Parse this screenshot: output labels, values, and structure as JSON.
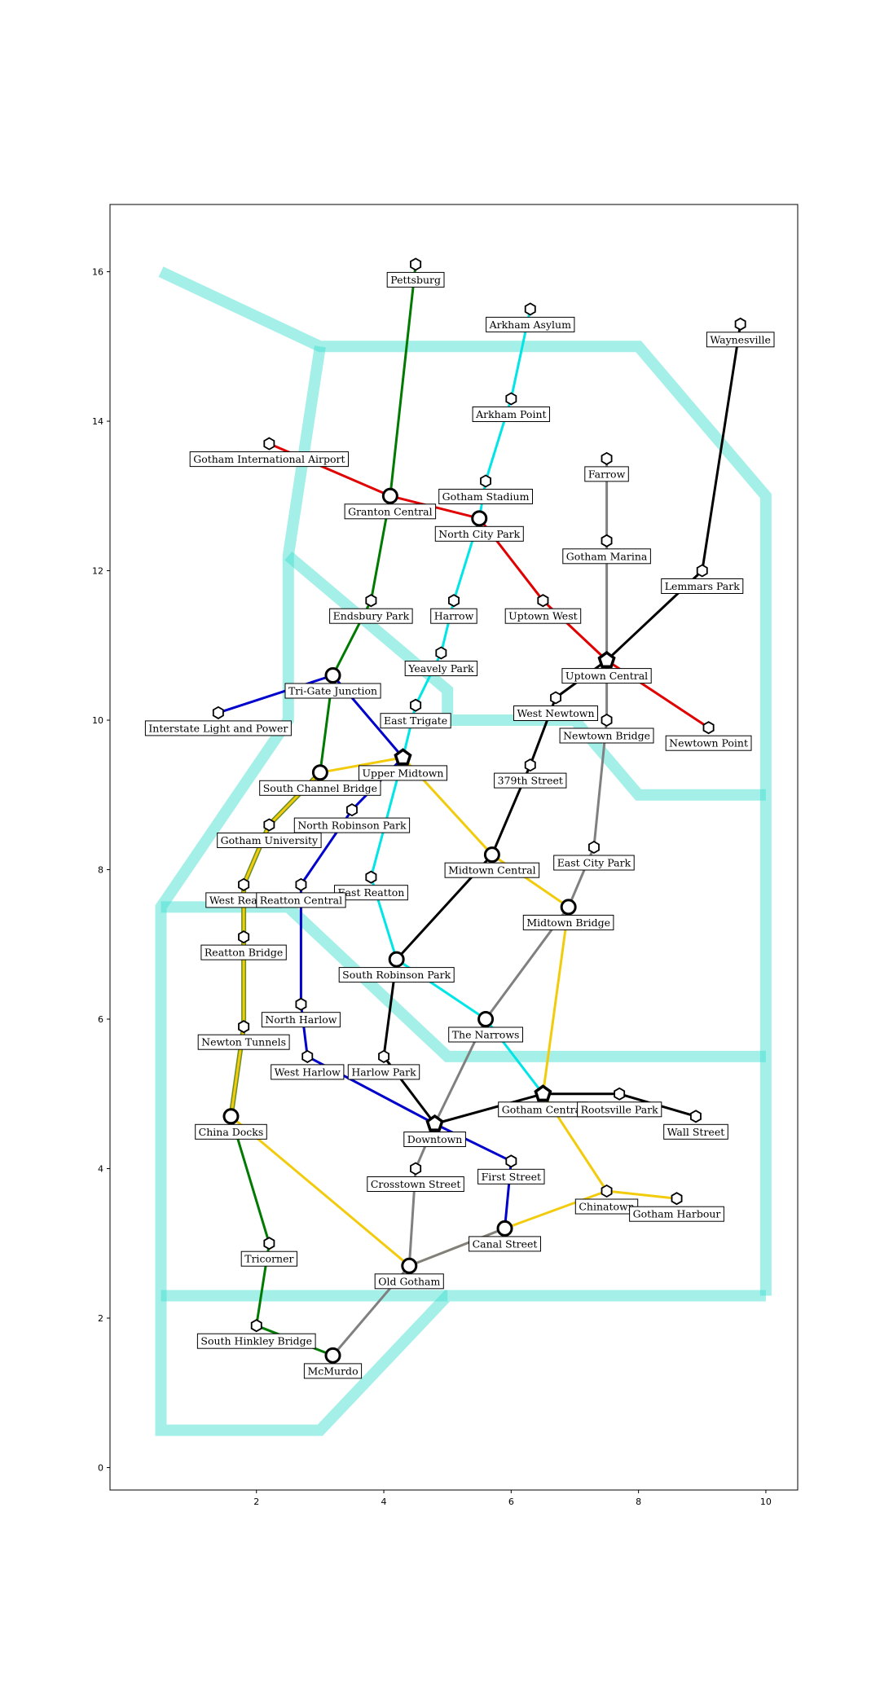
{
  "chart_data": {
    "type": "diagram",
    "xlim": [
      -0.3,
      10.5
    ],
    "ylim": [
      -0.3,
      16.9
    ],
    "x_ticks": [
      2,
      4,
      6,
      8,
      10
    ],
    "y_ticks": [
      0,
      2,
      4,
      6,
      8,
      10,
      12,
      14,
      16
    ],
    "colors": {
      "river": "#40e0d0",
      "red": "#e00000",
      "green": "#007a00",
      "cyan": "#00e5e5",
      "blue": "#0000cc",
      "black": "#000000",
      "gray": "#808080",
      "yellow": "#f2cc0c",
      "olive": "#6b8e23"
    },
    "river": [
      {
        "points": [
          [
            0.5,
            16
          ],
          [
            3,
            15
          ],
          [
            8,
            15
          ],
          [
            10,
            13
          ],
          [
            10,
            2.3
          ]
        ]
      },
      {
        "points": [
          [
            3,
            15
          ],
          [
            2.5,
            12.2
          ],
          [
            2.5,
            10
          ],
          [
            0.5,
            7.5
          ],
          [
            0.5,
            0.5
          ],
          [
            3,
            0.5
          ],
          [
            5,
            2.3
          ],
          [
            10,
            2.3
          ]
        ]
      },
      {
        "points": [
          [
            2.5,
            12.2
          ],
          [
            5,
            10.4
          ],
          [
            5,
            10
          ],
          [
            7,
            10
          ],
          [
            8,
            9
          ],
          [
            10,
            9
          ]
        ]
      },
      {
        "points": [
          [
            0.5,
            7.5
          ],
          [
            2.5,
            7.5
          ],
          [
            5,
            5.5
          ],
          [
            10,
            5.5
          ]
        ]
      },
      {
        "points": [
          [
            0.5,
            2.3
          ],
          [
            5,
            2.3
          ]
        ]
      }
    ],
    "stations": [
      {
        "id": "pettsburg",
        "name": "Pettsburg",
        "x": 4.5,
        "y": 16.1,
        "kind": "station"
      },
      {
        "id": "arkham-asylum",
        "name": "Arkham Asylum",
        "x": 6.3,
        "y": 15.5,
        "kind": "station"
      },
      {
        "id": "waynesville",
        "name": "Waynesville",
        "x": 9.6,
        "y": 15.3,
        "kind": "station"
      },
      {
        "id": "arkham-point",
        "name": "Arkham Point",
        "x": 6.0,
        "y": 14.3,
        "kind": "station"
      },
      {
        "id": "gotham-international-airport",
        "name": "Gotham International Airport",
        "x": 2.2,
        "y": 13.7,
        "kind": "station"
      },
      {
        "id": "farrow",
        "name": "Farrow",
        "x": 7.5,
        "y": 13.5,
        "kind": "station"
      },
      {
        "id": "gotham-stadium",
        "name": "Gotham Stadium",
        "x": 5.6,
        "y": 13.2,
        "kind": "station"
      },
      {
        "id": "granton-central",
        "name": "Granton Central",
        "x": 4.1,
        "y": 13.0,
        "kind": "hub"
      },
      {
        "id": "north-city-park",
        "name": "North City Park",
        "x": 5.5,
        "y": 12.7,
        "kind": "hub"
      },
      {
        "id": "gotham-marina",
        "name": "Gotham Marina",
        "x": 7.5,
        "y": 12.4,
        "kind": "station"
      },
      {
        "id": "lemmars-park",
        "name": "Lemmars Park",
        "x": 9.0,
        "y": 12.0,
        "kind": "station"
      },
      {
        "id": "endsbury-park",
        "name": "Endsbury Park",
        "x": 3.8,
        "y": 11.6,
        "kind": "station"
      },
      {
        "id": "harrow",
        "name": "Harrow",
        "x": 5.1,
        "y": 11.6,
        "kind": "station"
      },
      {
        "id": "uptown-west",
        "name": "Uptown West",
        "x": 6.5,
        "y": 11.6,
        "kind": "station"
      },
      {
        "id": "yeavely-park",
        "name": "Yeavely Park",
        "x": 4.9,
        "y": 10.9,
        "kind": "station"
      },
      {
        "id": "uptown-central",
        "name": "Uptown Central",
        "x": 7.5,
        "y": 10.8,
        "kind": "major"
      },
      {
        "id": "tri-gate-junction",
        "name": "Tri-Gate Junction",
        "x": 3.2,
        "y": 10.6,
        "kind": "hub"
      },
      {
        "id": "east-trigate",
        "name": "East Trigate",
        "x": 4.5,
        "y": 10.2,
        "kind": "station"
      },
      {
        "id": "west-newtown",
        "name": "West Newtown",
        "x": 6.7,
        "y": 10.3,
        "kind": "station"
      },
      {
        "id": "interstate-light-and-power",
        "name": "Interstate Light and Power",
        "x": 1.4,
        "y": 10.1,
        "kind": "station"
      },
      {
        "id": "newtown-bridge",
        "name": "Newtown Bridge",
        "x": 7.5,
        "y": 10.0,
        "kind": "station"
      },
      {
        "id": "newtown-point",
        "name": "Newtown Point",
        "x": 9.1,
        "y": 9.9,
        "kind": "station"
      },
      {
        "id": "upper-midtown",
        "name": "Upper Midtown",
        "x": 4.3,
        "y": 9.5,
        "kind": "major"
      },
      {
        "id": "379th-street",
        "name": "379th Street",
        "x": 6.3,
        "y": 9.4,
        "kind": "station"
      },
      {
        "id": "south-channel-bridge",
        "name": "South Channel Bridge",
        "x": 3.0,
        "y": 9.3,
        "kind": "hub"
      },
      {
        "id": "north-robinson-park",
        "name": "North Robinson Park",
        "x": 3.5,
        "y": 8.8,
        "kind": "station"
      },
      {
        "id": "gotham-university",
        "name": "Gotham University",
        "x": 2.2,
        "y": 8.6,
        "kind": "station"
      },
      {
        "id": "east-city-park",
        "name": "East City Park",
        "x": 7.3,
        "y": 8.3,
        "kind": "station"
      },
      {
        "id": "midtown-central",
        "name": "Midtown Central",
        "x": 5.7,
        "y": 8.2,
        "kind": "hub"
      },
      {
        "id": "east-reatton",
        "name": "East Reatton",
        "x": 3.8,
        "y": 7.9,
        "kind": "station"
      },
      {
        "id": "west-reatton",
        "name": "West Reatton",
        "x": 1.8,
        "y": 7.8,
        "kind": "station"
      },
      {
        "id": "reatton-central",
        "name": "Reatton Central",
        "x": 2.7,
        "y": 7.8,
        "kind": "station"
      },
      {
        "id": "midtown-bridge",
        "name": "Midtown Bridge",
        "x": 6.9,
        "y": 7.5,
        "kind": "hub"
      },
      {
        "id": "reatton-bridge",
        "name": "Reatton Bridge",
        "x": 1.8,
        "y": 7.1,
        "kind": "station"
      },
      {
        "id": "south-robinson-park",
        "name": "South Robinson Park",
        "x": 4.2,
        "y": 6.8,
        "kind": "hub"
      },
      {
        "id": "north-harlow",
        "name": "North Harlow",
        "x": 2.7,
        "y": 6.2,
        "kind": "station"
      },
      {
        "id": "the-narrows",
        "name": "The Narrows",
        "x": 5.6,
        "y": 6.0,
        "kind": "hub"
      },
      {
        "id": "newton-tunnels",
        "name": "Newton Tunnels",
        "x": 1.8,
        "y": 5.9,
        "kind": "station"
      },
      {
        "id": "west-harlow",
        "name": "West Harlow",
        "x": 2.8,
        "y": 5.5,
        "kind": "station"
      },
      {
        "id": "harlow-park",
        "name": "Harlow Park",
        "x": 4.0,
        "y": 5.5,
        "kind": "station"
      },
      {
        "id": "gotham-central",
        "name": "Gotham Central",
        "x": 6.5,
        "y": 5.0,
        "kind": "major"
      },
      {
        "id": "rootsville-park",
        "name": "Rootsville Park",
        "x": 7.7,
        "y": 5.0,
        "kind": "station"
      },
      {
        "id": "wall-street",
        "name": "Wall Street",
        "x": 8.9,
        "y": 4.7,
        "kind": "station"
      },
      {
        "id": "china-docks",
        "name": "China Docks",
        "x": 1.6,
        "y": 4.7,
        "kind": "hub"
      },
      {
        "id": "downtown",
        "name": "Downtown",
        "x": 4.8,
        "y": 4.6,
        "kind": "major"
      },
      {
        "id": "first-street",
        "name": "First Street",
        "x": 6.0,
        "y": 4.1,
        "kind": "station"
      },
      {
        "id": "crosstown-street",
        "name": "Crosstown Street",
        "x": 4.5,
        "y": 4.0,
        "kind": "station"
      },
      {
        "id": "chinatown",
        "name": "Chinatown",
        "x": 7.5,
        "y": 3.7,
        "kind": "station"
      },
      {
        "id": "gotham-harbour",
        "name": "Gotham Harbour",
        "x": 8.6,
        "y": 3.6,
        "kind": "station"
      },
      {
        "id": "canal-street",
        "name": "Canal Street",
        "x": 5.9,
        "y": 3.2,
        "kind": "hub"
      },
      {
        "id": "tricorner",
        "name": "Tricorner",
        "x": 2.2,
        "y": 3.0,
        "kind": "station"
      },
      {
        "id": "old-gotham",
        "name": "Old Gotham",
        "x": 4.4,
        "y": 2.7,
        "kind": "hub"
      },
      {
        "id": "south-hinkley-bridge",
        "name": "South Hinkley Bridge",
        "x": 2.0,
        "y": 1.9,
        "kind": "station"
      },
      {
        "id": "mcmurdo",
        "name": "McMurdo",
        "x": 3.2,
        "y": 1.5,
        "kind": "hub"
      }
    ],
    "lines": [
      {
        "color": "red",
        "stops": [
          "gotham-international-airport",
          "granton-central",
          "north-city-park",
          "uptown-west",
          "uptown-central",
          "newtown-point"
        ]
      },
      {
        "color": "green",
        "stops": [
          "pettsburg",
          "granton-central",
          "endsbury-park",
          "tri-gate-junction",
          "south-channel-bridge"
        ]
      },
      {
        "color": "cyan",
        "stops": [
          "arkham-asylum",
          "arkham-point",
          "gotham-stadium",
          "north-city-park",
          "harrow",
          "yeavely-park",
          "east-trigate",
          "upper-midtown",
          "east-reatton",
          "south-robinson-park",
          "the-narrows",
          "gotham-central"
        ]
      },
      {
        "color": "blue",
        "stops": [
          "interstate-light-and-power",
          "tri-gate-junction",
          "upper-midtown",
          "north-robinson-park",
          "reatton-central",
          "north-harlow",
          "west-harlow",
          "downtown",
          "first-street",
          "canal-street"
        ]
      },
      {
        "color": "black",
        "stops": [
          "waynesville",
          "lemmars-park",
          "uptown-central",
          "west-newtown",
          "379th-street",
          "midtown-central",
          "south-robinson-park",
          "harlow-park",
          "downtown",
          "gotham-central",
          "rootsville-park",
          "wall-street"
        ]
      },
      {
        "color": "gray",
        "stops": [
          "farrow",
          "gotham-marina",
          "uptown-central",
          "newtown-bridge",
          "east-city-park",
          "midtown-bridge",
          "the-narrows",
          "downtown",
          "crosstown-street",
          "old-gotham",
          "mcmurdo"
        ]
      },
      {
        "color": "yellow",
        "stops": [
          "south-channel-bridge",
          "upper-midtown",
          "midtown-central",
          "midtown-bridge",
          "gotham-central",
          "chinatown",
          "gotham-harbour"
        ]
      },
      {
        "color": "yellow",
        "stops": [
          "china-docks",
          "old-gotham",
          "canal-street",
          "chinatown"
        ]
      },
      {
        "color": "gray",
        "stops": [
          "old-gotham",
          "canal-street"
        ]
      },
      {
        "color": "green",
        "stops": [
          "china-docks",
          "tricorner",
          "south-hinkley-bridge",
          "mcmurdo"
        ]
      },
      {
        "color": "olive",
        "stops": [
          "south-channel-bridge",
          "gotham-university",
          "west-reatton",
          "reatton-bridge",
          "newton-tunnels",
          "china-docks"
        ]
      },
      {
        "color": "yellow",
        "stops": [
          "south-channel-bridge",
          "gotham-university",
          "west-reatton",
          "reatton-bridge",
          "newton-tunnels",
          "china-docks"
        ]
      }
    ]
  }
}
